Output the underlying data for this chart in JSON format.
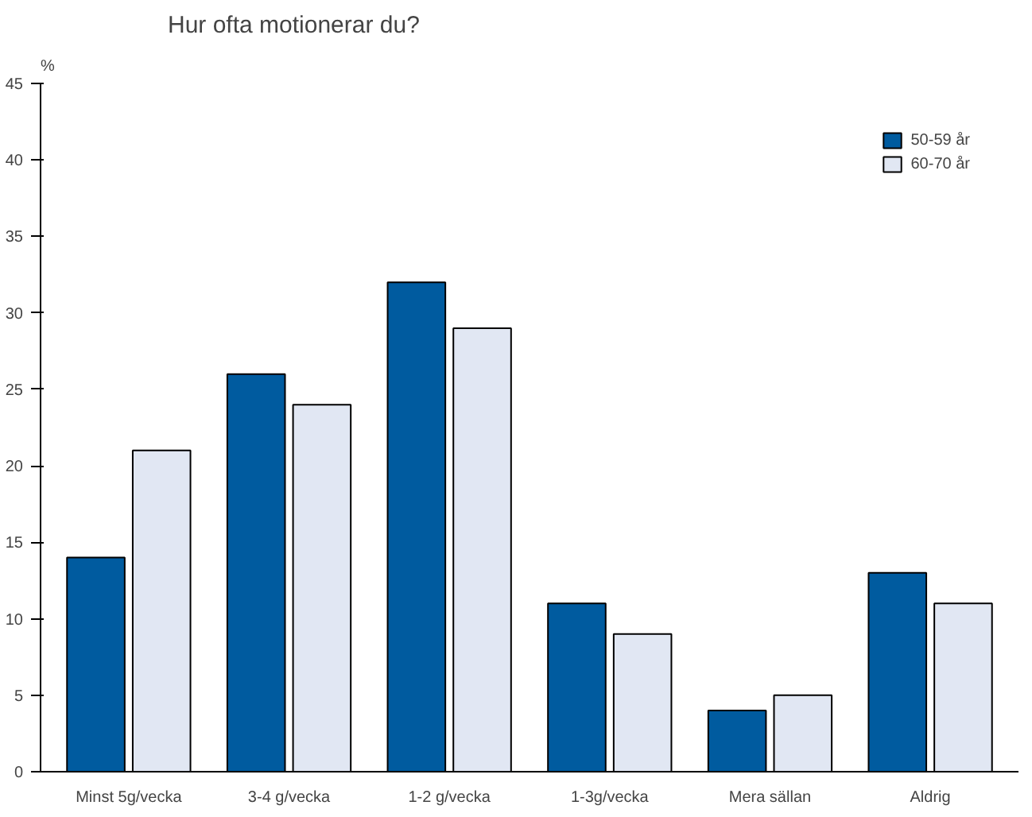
{
  "chart_data": {
    "type": "bar",
    "title": "Hur ofta motionerar du?",
    "ylabel": "%",
    "categories": [
      "Minst 5g/vecka",
      "3-4 g/vecka",
      "1-2 g/vecka",
      "1-3g/vecka",
      "Mera sällan",
      "Aldrig"
    ],
    "series": [
      {
        "name": "50-59 år",
        "color": "#005b9f",
        "values": [
          14,
          26,
          32,
          11,
          4,
          13
        ]
      },
      {
        "name": "60-70 år",
        "color": "#e1e7f3",
        "values": [
          21,
          24,
          29,
          9,
          5,
          11
        ]
      }
    ],
    "ylim": [
      0,
      45
    ],
    "yticks": [
      0,
      5,
      10,
      15,
      20,
      25,
      30,
      35,
      40,
      45
    ],
    "grid": false,
    "legend": "top right"
  }
}
